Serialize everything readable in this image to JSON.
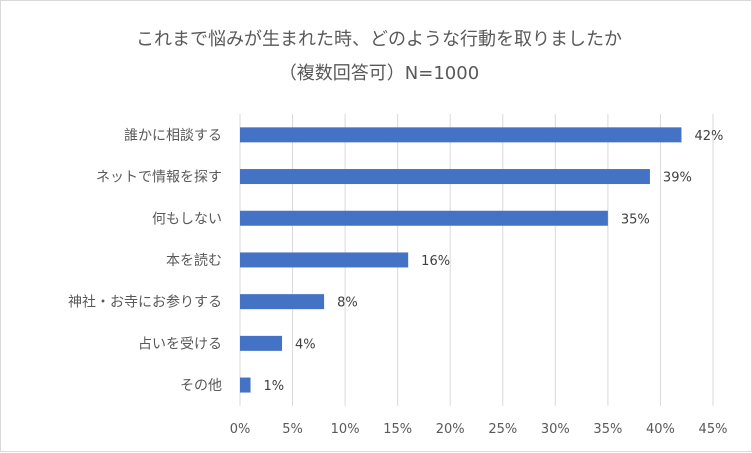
{
  "chart_data": {
    "type": "bar",
    "orientation": "horizontal",
    "title": "これまで悩みが生まれた時、どのような行動を取りましたか",
    "subtitle": "（複数回答可）N=1000",
    "categories": [
      "誰かに相談する",
      "ネットで情報を探す",
      "何もしない",
      "本を読む",
      "神社・お寺にお参りする",
      "占いを受ける",
      "その他"
    ],
    "values": [
      42,
      39,
      35,
      16,
      8,
      4,
      1
    ],
    "data_labels": [
      "42%",
      "39%",
      "35%",
      "16%",
      "8%",
      "4%",
      "1%"
    ],
    "xlim": [
      0,
      45
    ],
    "xticks": [
      0,
      5,
      10,
      15,
      20,
      25,
      30,
      35,
      40,
      45
    ],
    "xtick_labels": [
      "0%",
      "5%",
      "10%",
      "15%",
      "20%",
      "25%",
      "30%",
      "35%",
      "40%",
      "45%"
    ],
    "xlabel": "",
    "ylabel": "",
    "grid": "vertical",
    "legend": "none",
    "bar_color": "#4472c4"
  }
}
